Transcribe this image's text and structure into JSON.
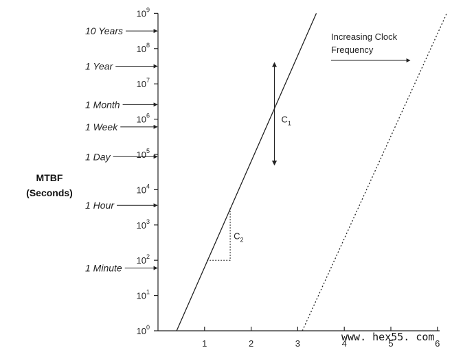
{
  "chart_data": {
    "type": "line",
    "ylabel_lines": [
      "MTBF",
      "(Seconds)"
    ],
    "y_scale": "log",
    "ylim": [
      1,
      1000000000
    ],
    "xlim": [
      0,
      6.2
    ],
    "x_ticks": [
      1,
      2,
      3,
      4,
      5,
      6
    ],
    "y_ticks": [
      {
        "base": "10",
        "exp": "0",
        "value": 1
      },
      {
        "base": "10",
        "exp": "1",
        "value": 10
      },
      {
        "base": "10",
        "exp": "2",
        "value": 100
      },
      {
        "base": "10",
        "exp": "3",
        "value": 1000
      },
      {
        "base": "10",
        "exp": "4",
        "value": 10000
      },
      {
        "base": "10",
        "exp": "5",
        "value": 100000
      },
      {
        "base": "10",
        "exp": "6",
        "value": 1000000
      },
      {
        "base": "10",
        "exp": "7",
        "value": 10000000
      },
      {
        "base": "10",
        "exp": "8",
        "value": 100000000
      },
      {
        "base": "10",
        "exp": "9",
        "value": 1000000000
      }
    ],
    "time_markers": [
      {
        "label": "10 Years",
        "seconds": 315360000
      },
      {
        "label": "1 Year",
        "seconds": 31536000
      },
      {
        "label": "1 Month",
        "seconds": 2592000
      },
      {
        "label": "1 Week",
        "seconds": 604800
      },
      {
        "label": "1 Day",
        "seconds": 86400
      },
      {
        "label": "1 Hour",
        "seconds": 3600
      },
      {
        "label": "1 Minute",
        "seconds": 60
      }
    ],
    "series": [
      {
        "style": "solid",
        "x": [
          0.4,
          3.4
        ],
        "y": [
          1,
          1000000000
        ]
      },
      {
        "style": "dotted",
        "x": [
          3.1,
          6.2
        ],
        "y": [
          1,
          1000000000
        ]
      }
    ],
    "annotations": {
      "c1": {
        "main": "C",
        "sub": "1",
        "x": 2.5,
        "y_range": [
          50000,
          40000000
        ]
      },
      "c2": {
        "main": "C",
        "sub": "2",
        "x_range": [
          1.05,
          1.55
        ],
        "y_range": [
          100,
          3000
        ]
      },
      "clock_label": [
        "Increasing Clock",
        "Frequency"
      ]
    }
  },
  "watermark": "www. hex55. com"
}
